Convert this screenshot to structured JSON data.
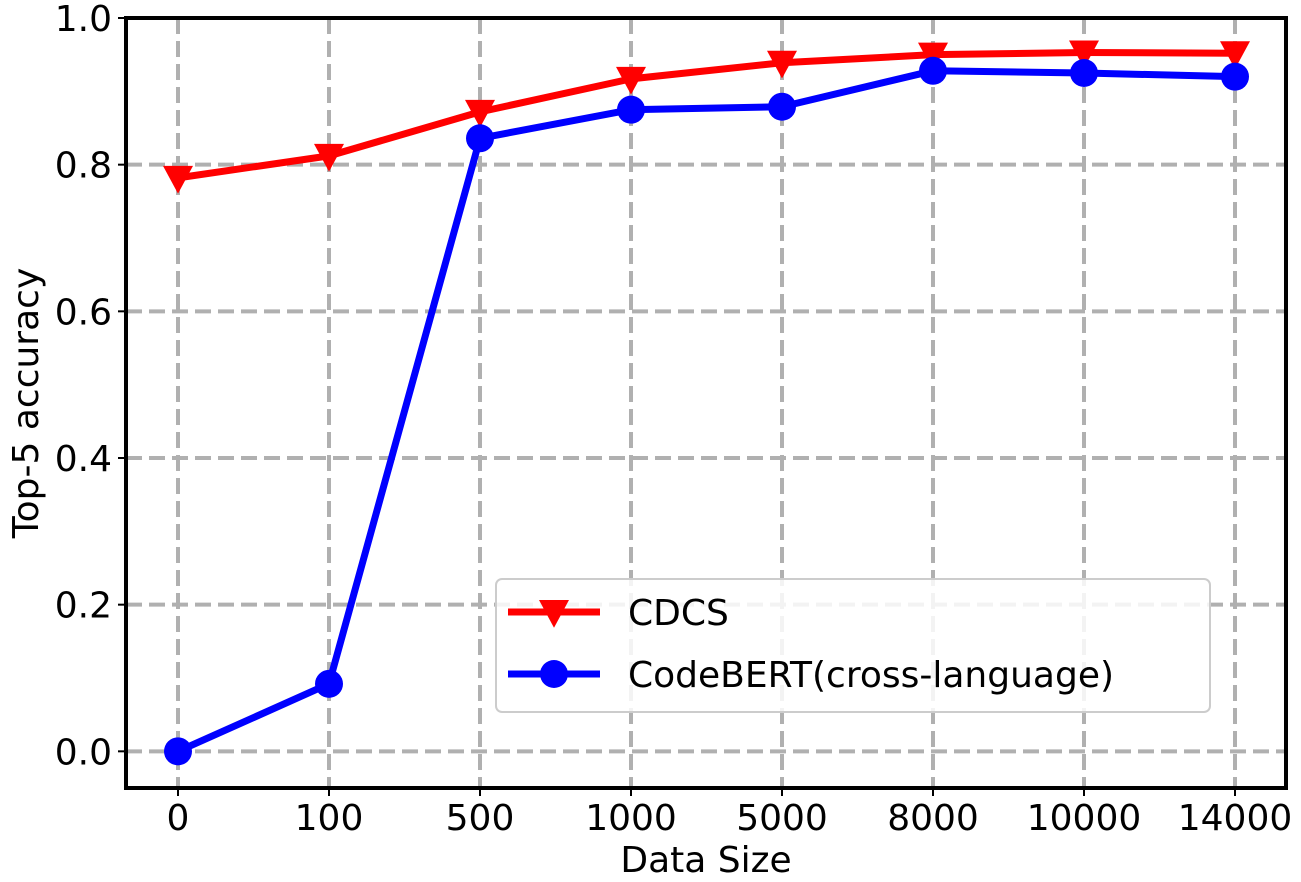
{
  "chart_data": {
    "type": "line",
    "xlabel": "Data Size",
    "ylabel": "Top-5 accuracy",
    "categories": [
      "0",
      "100",
      "500",
      "1000",
      "5000",
      "8000",
      "10000",
      "14000"
    ],
    "ylim": [
      -0.05,
      1.0
    ],
    "yticks": [
      "0.0",
      "0.2",
      "0.4",
      "0.6",
      "0.8",
      "1.0"
    ],
    "grid": true,
    "legend_position": "lower-right",
    "series": [
      {
        "name": "CDCS",
        "color": "#ff0000",
        "marker": "triangle-down",
        "values": [
          0.782,
          0.812,
          0.872,
          0.917,
          0.939,
          0.95,
          0.953,
          0.952
        ]
      },
      {
        "name": "CodeBERT(cross-language)",
        "color": "#0000ff",
        "marker": "circle",
        "values": [
          0.0,
          0.092,
          0.836,
          0.875,
          0.879,
          0.928,
          0.925,
          0.92
        ]
      }
    ]
  }
}
